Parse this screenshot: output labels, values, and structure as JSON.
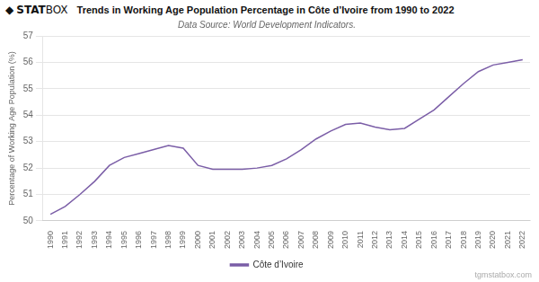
{
  "chart_data": {
    "type": "line",
    "title": "Trends in Working Age Population Percentage in Côte d’Ivoire from 1990 to 2022",
    "subtitle": "Data Source: World Development Indicators.",
    "y_label": "Percentage of Working Age Population (%)",
    "logo": [
      "◆",
      "STAT",
      "BOX"
    ],
    "watermark": "tgmstatbox.com",
    "x": [
      1990,
      1991,
      1992,
      1993,
      1994,
      1995,
      1996,
      1997,
      1998,
      1999,
      2000,
      2001,
      2002,
      2003,
      2004,
      2005,
      2006,
      2007,
      2008,
      2009,
      2010,
      2011,
      2012,
      2013,
      2014,
      2015,
      2016,
      2017,
      2018,
      2019,
      2020,
      2021,
      2022
    ],
    "series": [
      {
        "name": "Côte d’Ivoire",
        "color": "#7b5ea7",
        "values": [
          50.25,
          50.55,
          51.0,
          51.5,
          52.1,
          52.4,
          52.55,
          52.7,
          52.85,
          52.75,
          52.1,
          51.95,
          51.95,
          51.95,
          52.0,
          52.1,
          52.35,
          52.7,
          53.1,
          53.4,
          53.65,
          53.7,
          53.55,
          53.45,
          53.5,
          53.85,
          54.2,
          54.7,
          55.2,
          55.65,
          55.9,
          56.0,
          56.1
        ]
      }
    ],
    "xlim": [
      1989.5,
      2022.5
    ],
    "xticks": [
      1990,
      1991,
      1992,
      1993,
      1994,
      1995,
      1996,
      1997,
      1998,
      1999,
      2000,
      2001,
      2002,
      2003,
      2004,
      2005,
      2006,
      2007,
      2008,
      2009,
      2010,
      2011,
      2012,
      2013,
      2014,
      2015,
      2016,
      2017,
      2018,
      2019,
      2020,
      2021,
      2022
    ],
    "ylim": [
      50.0,
      57.0
    ],
    "yticks": [
      50,
      51,
      52,
      53,
      54,
      55,
      56,
      57
    ],
    "grid": "y",
    "legend": "bottom"
  }
}
